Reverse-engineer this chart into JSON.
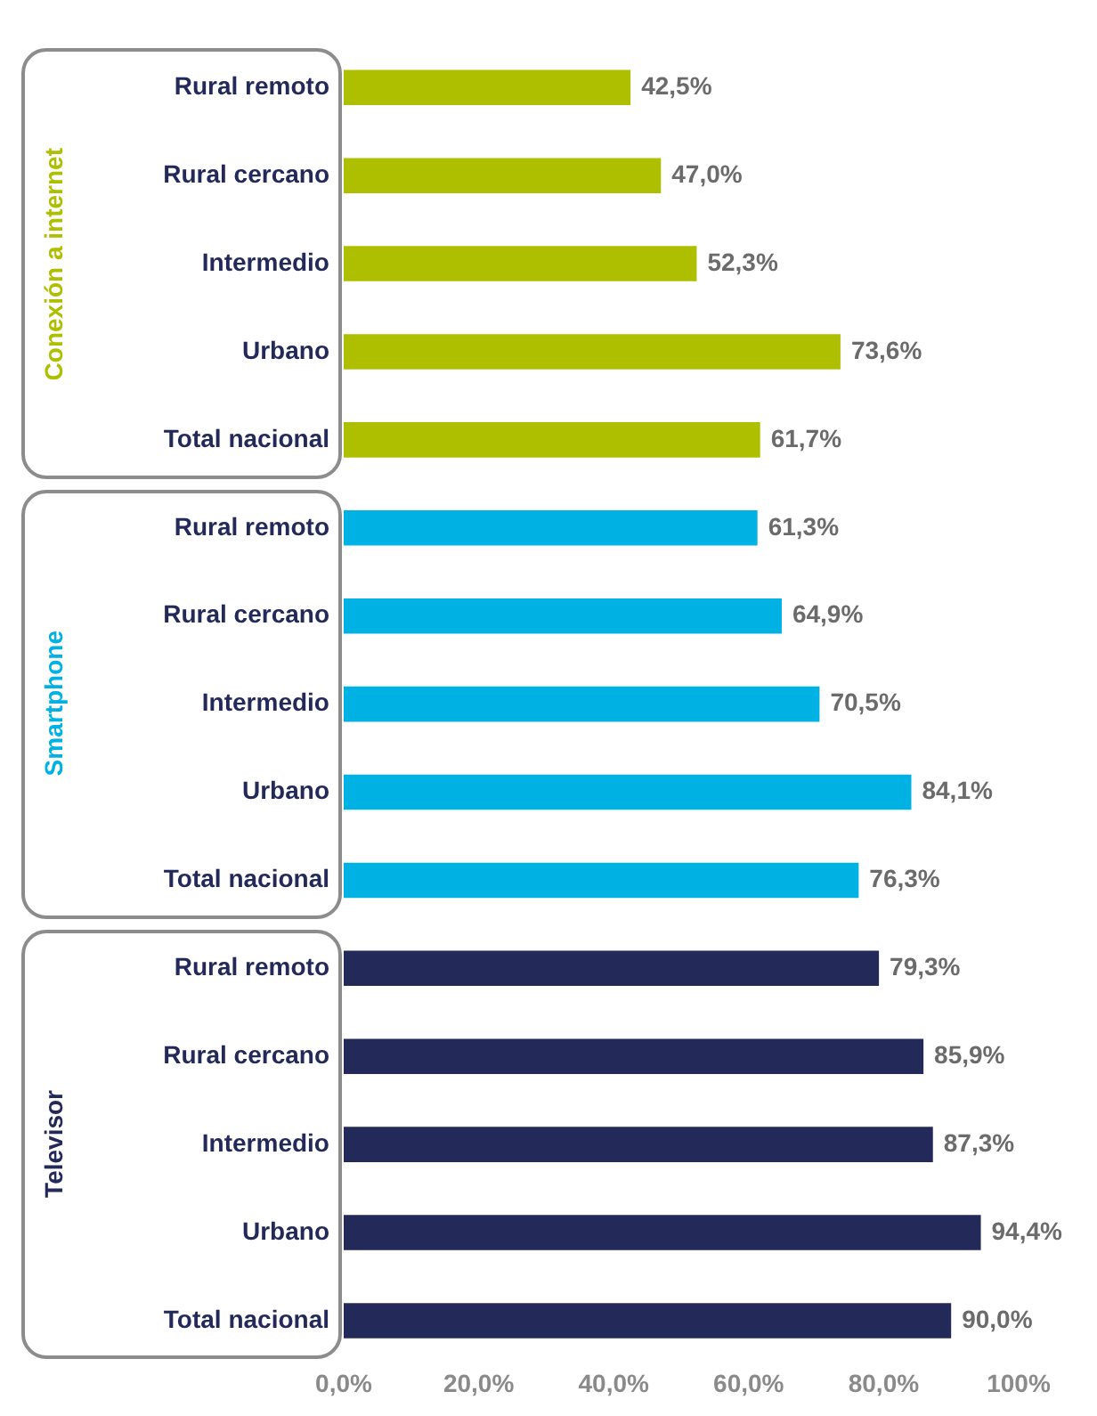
{
  "chart_data": {
    "type": "bar",
    "orientation": "horizontal",
    "categories": [
      "Rural remoto",
      "Rural cercano",
      "Intermedio",
      "Urbano",
      "Total nacional",
      "Rural remoto",
      "Rural cercano",
      "Intermedio",
      "Urbano",
      "Total nacional",
      "Rural remoto",
      "Rural cercano",
      "Intermedio",
      "Urbano",
      "Total nacional"
    ],
    "series": [
      {
        "name": "Conexión a internet",
        "color": "#aebf00",
        "values": [
          42.5,
          47.0,
          52.3,
          73.6,
          61.7,
          null,
          null,
          null,
          null,
          null,
          null,
          null,
          null,
          null,
          null
        ],
        "value_labels": [
          "42,5%",
          "47,0%",
          "52,3%",
          "73,6%",
          "61,7%",
          null,
          null,
          null,
          null,
          null,
          null,
          null,
          null,
          null,
          null
        ]
      },
      {
        "name": "Smartphone",
        "color": "#00b2e3",
        "values": [
          null,
          null,
          null,
          null,
          null,
          61.3,
          64.9,
          70.5,
          84.1,
          76.3,
          null,
          null,
          null,
          null,
          null
        ],
        "value_labels": [
          null,
          null,
          null,
          null,
          null,
          "61,3%",
          "64,9%",
          "70,5%",
          "84,1%",
          "76,3%",
          null,
          null,
          null,
          null,
          null
        ]
      },
      {
        "name": "Televisor",
        "color": "#232a5a",
        "values": [
          null,
          null,
          null,
          null,
          null,
          null,
          null,
          null,
          null,
          null,
          79.3,
          85.9,
          87.3,
          94.4,
          90.0
        ],
        "value_labels": [
          null,
          null,
          null,
          null,
          null,
          null,
          null,
          null,
          null,
          null,
          "79,3%",
          "85,9%",
          "87,3%",
          "94,4%",
          "90,0%"
        ]
      }
    ],
    "xlim": [
      0,
      100
    ],
    "xticks": [
      {
        "value": 0,
        "label": "0,0%"
      },
      {
        "value": 20,
        "label": "20,0%"
      },
      {
        "value": 40,
        "label": "40,0%"
      },
      {
        "value": 60,
        "label": "60,0%"
      },
      {
        "value": 80,
        "label": "80,0%"
      },
      {
        "value": 100,
        "label": "100%"
      }
    ],
    "grid": false,
    "legend": false
  }
}
